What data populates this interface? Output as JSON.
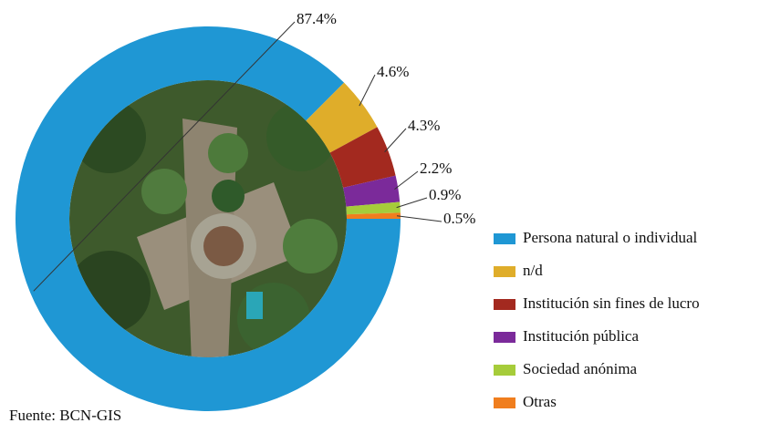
{
  "chart_data": {
    "type": "donut",
    "categories": [
      "Persona natural o individual",
      "n/d",
      "Institución sin fines de lucro",
      "Institución pública",
      "Sociedad anónima",
      "Otras"
    ],
    "values": [
      87.4,
      4.6,
      4.3,
      2.2,
      0.9,
      0.5
    ],
    "value_labels": [
      "87.4%",
      "4.6%",
      "4.3%",
      "2.2%",
      "0.9%",
      "0.5%"
    ],
    "colors": [
      "#1f97d4",
      "#dfad2a",
      "#a3291f",
      "#7b2a9a",
      "#a6cc3a",
      "#f07e1e"
    ],
    "legend": "right",
    "source": "Fuente: BCN-GIS"
  }
}
